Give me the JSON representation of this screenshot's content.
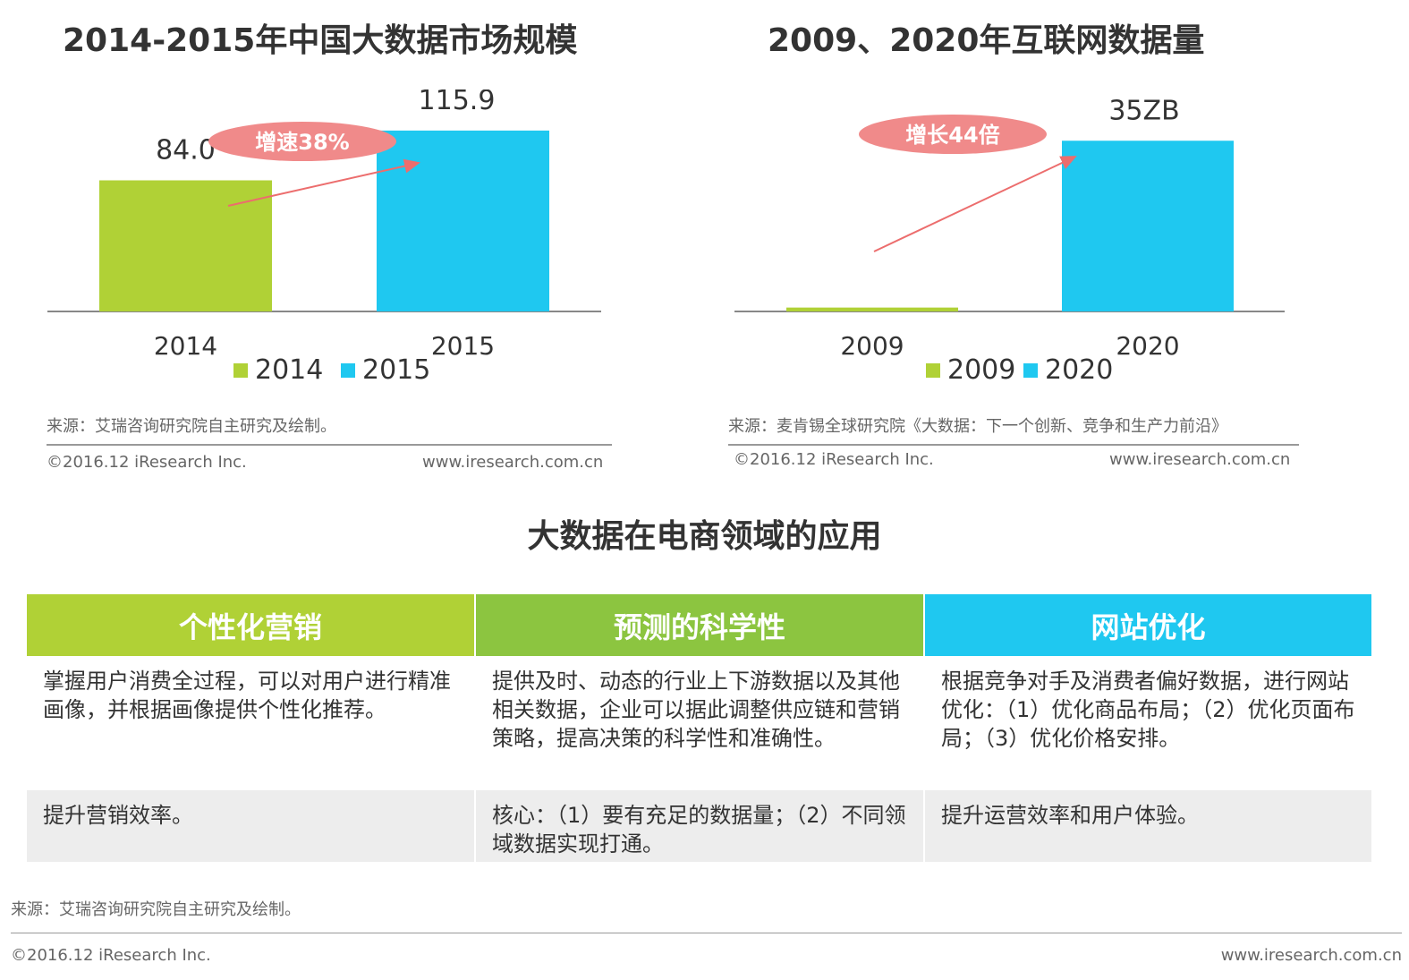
{
  "charts": [
    {
      "title": "2014-2015年中国大数据市场规模",
      "growth_label": "增速38%",
      "source": "来源：艾瑞咨询研究院自主研究及绘制。",
      "copyright": "©2016.12 iResearch Inc.",
      "website": "www.iresearch.com.cn"
    },
    {
      "title": "2009、2020年互联网数据量",
      "growth_label": "增长44倍",
      "source": "来源：麦肯锡全球研究院《大数据：下一个创新、竞争和生产力前沿》",
      "copyright": "©2016.12 iResearch Inc.",
      "website": "www.iresearch.com.cn"
    }
  ],
  "chart_data": [
    {
      "type": "bar",
      "title": "2014-2015年中国大数据市场规模",
      "categories": [
        "2014",
        "2015"
      ],
      "values": [
        84.0,
        115.9
      ],
      "value_labels": [
        "84.0",
        "115.9"
      ],
      "legend": [
        "2014",
        "2015"
      ],
      "legend_position": "bottom",
      "colors": [
        "#b0d136",
        "#1fc8f0"
      ],
      "annotation": "增速38%",
      "ylim": [
        0,
        125
      ],
      "grid": false
    },
    {
      "type": "bar",
      "title": "2009、2020年互联网数据量",
      "categories": [
        "2009",
        "2020"
      ],
      "values": [
        0.8,
        35
      ],
      "value_labels": [
        "",
        "35ZB"
      ],
      "legend": [
        "2009",
        "2020"
      ],
      "legend_position": "bottom",
      "colors": [
        "#b0d136",
        "#1fc8f0"
      ],
      "annotation": "增长44倍",
      "ylim": [
        0,
        40
      ],
      "grid": false
    }
  ],
  "application": {
    "title": "大数据在电商领域的应用",
    "columns": [
      {
        "header": "个性化营销",
        "color": "#b0d136",
        "description": "掌握用户消费全过程，可以对用户进行精准画像，并根据画像提供个性化推荐。",
        "benefit": "提升营销效率。"
      },
      {
        "header": "预测的科学性",
        "color": "#8cc540",
        "description": "提供及时、动态的行业上下游数据以及其他相关数据，企业可以据此调整供应链和营销策略，提高决策的科学性和准确性。",
        "benefit": "核心：（1）要有充足的数据量；（2）不同领域数据实现打通。"
      },
      {
        "header": "网站优化",
        "color": "#1fc8f0",
        "description": "根据竞争对手及消费者偏好数据，进行网站优化：（1）优化商品布局；（2）优化页面布局；（3）优化价格安排。",
        "benefit": "提升运营效率和用户体验。"
      }
    ],
    "source": "来源：艾瑞咨询研究院自主研究及绘制。",
    "copyright": "©2016.12 iResearch Inc.",
    "website": "www.iresearch.com.cn"
  },
  "colors": {
    "growth_bubble": "#f08a8a",
    "arrow": "#ec6d6d",
    "axis": "#888888"
  }
}
